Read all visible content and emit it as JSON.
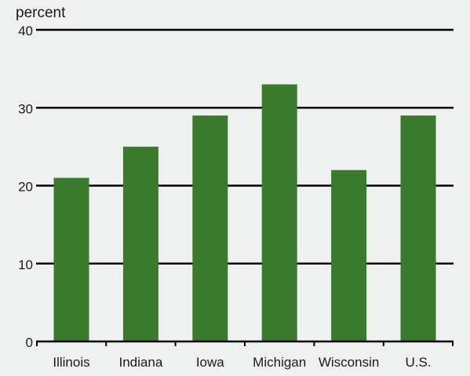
{
  "chart_data": {
    "type": "bar",
    "ylabel": "percent",
    "xlabel": "",
    "title": "",
    "categories": [
      "Illinois",
      "Indiana",
      "Iowa",
      "Michigan",
      "Wisconsin",
      "U.S."
    ],
    "values": [
      21,
      25,
      29,
      33,
      22,
      29
    ],
    "ylim": [
      0,
      40
    ],
    "yticks": [
      0,
      10,
      20,
      30,
      40
    ],
    "grid": true,
    "legend": "none",
    "bar_color": "#3a7a2c",
    "grid_color": "#000000"
  }
}
